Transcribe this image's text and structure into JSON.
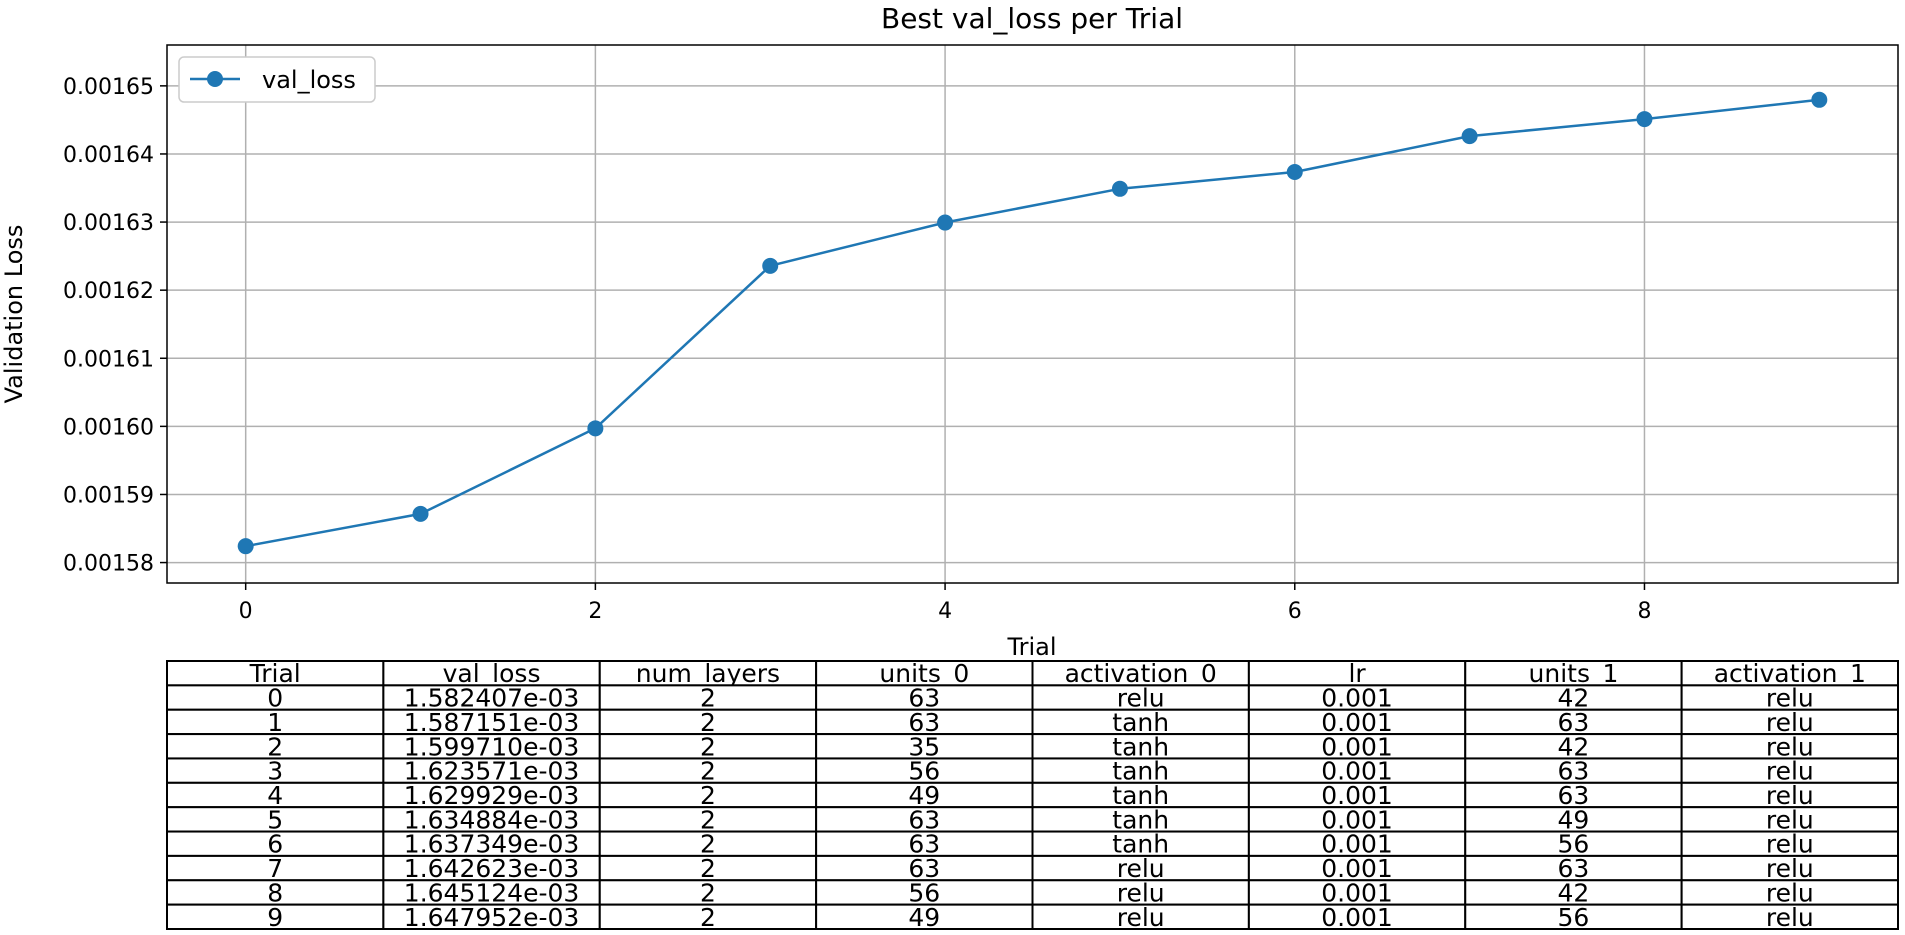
{
  "chart_data": {
    "type": "line",
    "title": "Best val_loss per Trial",
    "xlabel": "Trial",
    "ylabel": "Validation Loss",
    "x": [
      0,
      1,
      2,
      3,
      4,
      5,
      6,
      7,
      8,
      9
    ],
    "series": [
      {
        "name": "val_loss",
        "color": "#1f77b4",
        "marker": "circle",
        "values": [
          0.001582407,
          0.001587151,
          0.00159971,
          0.001623571,
          0.001629929,
          0.001634884,
          0.001637349,
          0.001642623,
          0.001645124,
          0.001647952
        ]
      }
    ],
    "xlim": [
      -0.45,
      9.45
    ],
    "ylim": [
      0.001577,
      0.001656
    ],
    "xticks": [
      0,
      2,
      4,
      6,
      8
    ],
    "xtick_labels": [
      "0",
      "2",
      "4",
      "6",
      "8"
    ],
    "yticks": [
      0.00158,
      0.00159,
      0.0016,
      0.00161,
      0.00162,
      0.00163,
      0.00164,
      0.00165
    ],
    "ytick_labels": [
      "0.00158",
      "0.00159",
      "0.00160",
      "0.00161",
      "0.00162",
      "0.00163",
      "0.00164",
      "0.00165"
    ],
    "grid": true,
    "grid_color": "#b0b0b0",
    "legend_position": "top-left"
  },
  "table": {
    "columns": [
      "Trial",
      "val_loss",
      "num_layers",
      "units_0",
      "activation_0",
      "lr",
      "units_1",
      "activation_1"
    ],
    "rows": [
      [
        "0",
        "1.582407e-03",
        "2",
        "63",
        "relu",
        "0.001",
        "42",
        "relu"
      ],
      [
        "1",
        "1.587151e-03",
        "2",
        "63",
        "tanh",
        "0.001",
        "63",
        "relu"
      ],
      [
        "2",
        "1.599710e-03",
        "2",
        "35",
        "tanh",
        "0.001",
        "42",
        "relu"
      ],
      [
        "3",
        "1.623571e-03",
        "2",
        "56",
        "tanh",
        "0.001",
        "63",
        "relu"
      ],
      [
        "4",
        "1.629929e-03",
        "2",
        "49",
        "tanh",
        "0.001",
        "63",
        "relu"
      ],
      [
        "5",
        "1.634884e-03",
        "2",
        "63",
        "tanh",
        "0.001",
        "49",
        "relu"
      ],
      [
        "6",
        "1.637349e-03",
        "2",
        "63",
        "tanh",
        "0.001",
        "56",
        "relu"
      ],
      [
        "7",
        "1.642623e-03",
        "2",
        "63",
        "relu",
        "0.001",
        "63",
        "relu"
      ],
      [
        "8",
        "1.645124e-03",
        "2",
        "56",
        "relu",
        "0.001",
        "42",
        "relu"
      ],
      [
        "9",
        "1.647952e-03",
        "2",
        "49",
        "relu",
        "0.001",
        "56",
        "relu"
      ]
    ]
  }
}
